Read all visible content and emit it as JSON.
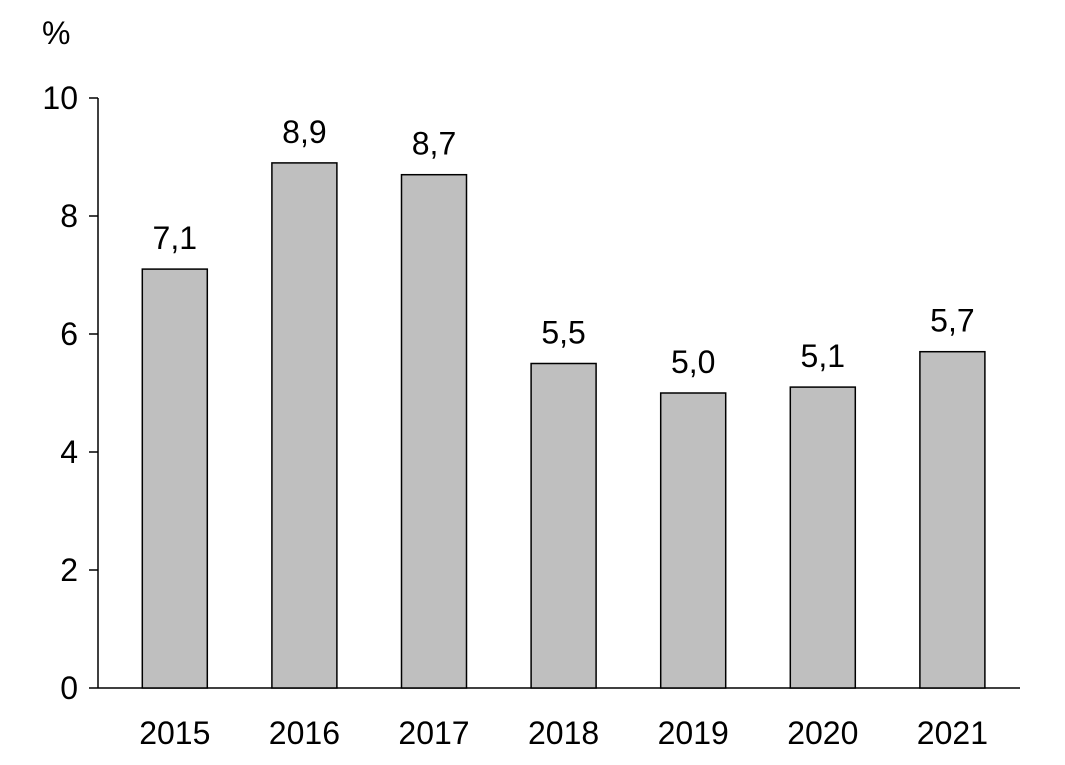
{
  "chart_data": {
    "type": "bar",
    "ylabel": "%",
    "categories": [
      "2015",
      "2016",
      "2017",
      "2018",
      "2019",
      "2020",
      "2021"
    ],
    "values": [
      7.1,
      8.9,
      8.7,
      5.5,
      5.0,
      5.1,
      5.7
    ],
    "data_labels": [
      "7,1",
      "8,9",
      "8,7",
      "5,5",
      "5,0",
      "5,1",
      "5,7"
    ],
    "ylim": [
      0,
      10
    ],
    "yticks": [
      0,
      2,
      4,
      6,
      8,
      10
    ],
    "grid": false,
    "legend": "none"
  },
  "colors": {
    "bar_fill": "#bfbfbf",
    "bar_stroke": "#000000",
    "axis": "#000000"
  }
}
